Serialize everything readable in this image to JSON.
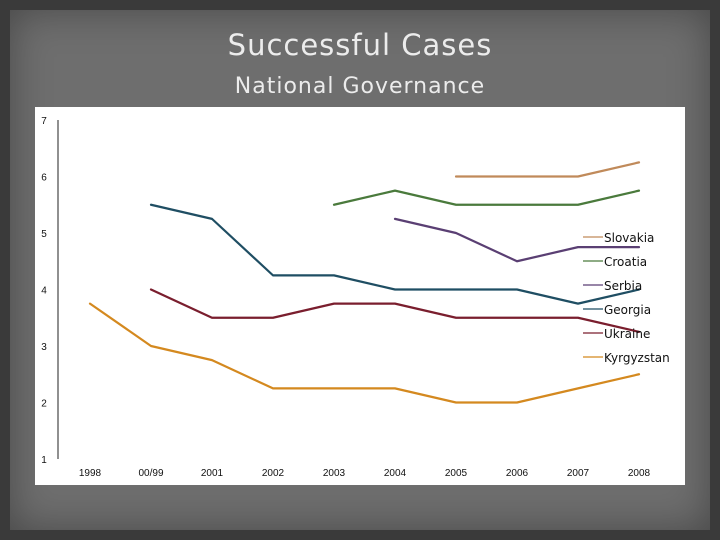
{
  "slide": {
    "title": "Successful Cases",
    "subtitle": "National Governance"
  },
  "chart_data": {
    "type": "line",
    "title": "",
    "xlabel": "",
    "ylabel": "",
    "categories": [
      "1998",
      "00/99",
      "2001",
      "2002",
      "2003",
      "2004",
      "2005",
      "2006",
      "2007",
      "2008"
    ],
    "y_ticks": [
      1,
      2,
      3,
      4,
      5,
      6,
      7
    ],
    "ylim": [
      1,
      7
    ],
    "grid": false,
    "legend": "right",
    "series": [
      {
        "name": "Slovakia",
        "color": "#c08a5a",
        "values": [
          null,
          null,
          null,
          null,
          null,
          null,
          6.0,
          6.0,
          6.0,
          6.25
        ]
      },
      {
        "name": "Croatia",
        "color": "#4a7a3c",
        "values": [
          null,
          null,
          null,
          null,
          5.5,
          5.75,
          5.5,
          5.5,
          5.5,
          5.75
        ]
      },
      {
        "name": "Serbia",
        "color": "#5a3f73",
        "values": [
          null,
          null,
          null,
          null,
          null,
          5.25,
          5.0,
          4.5,
          4.75,
          4.75
        ]
      },
      {
        "name": "Georgia",
        "color": "#1f4e63",
        "values": [
          null,
          5.5,
          5.25,
          4.25,
          4.25,
          4.0,
          4.0,
          4.0,
          3.75,
          4.0
        ]
      },
      {
        "name": "Ukraine",
        "color": "#7a1e2e",
        "values": [
          null,
          4.0,
          3.5,
          3.5,
          3.75,
          3.75,
          3.5,
          3.5,
          3.5,
          3.25
        ]
      },
      {
        "name": "Kyrgyzstan",
        "color": "#d4891f",
        "values": [
          3.75,
          3.0,
          2.75,
          2.25,
          2.25,
          2.25,
          2.0,
          2.0,
          2.25,
          2.5
        ]
      }
    ]
  }
}
